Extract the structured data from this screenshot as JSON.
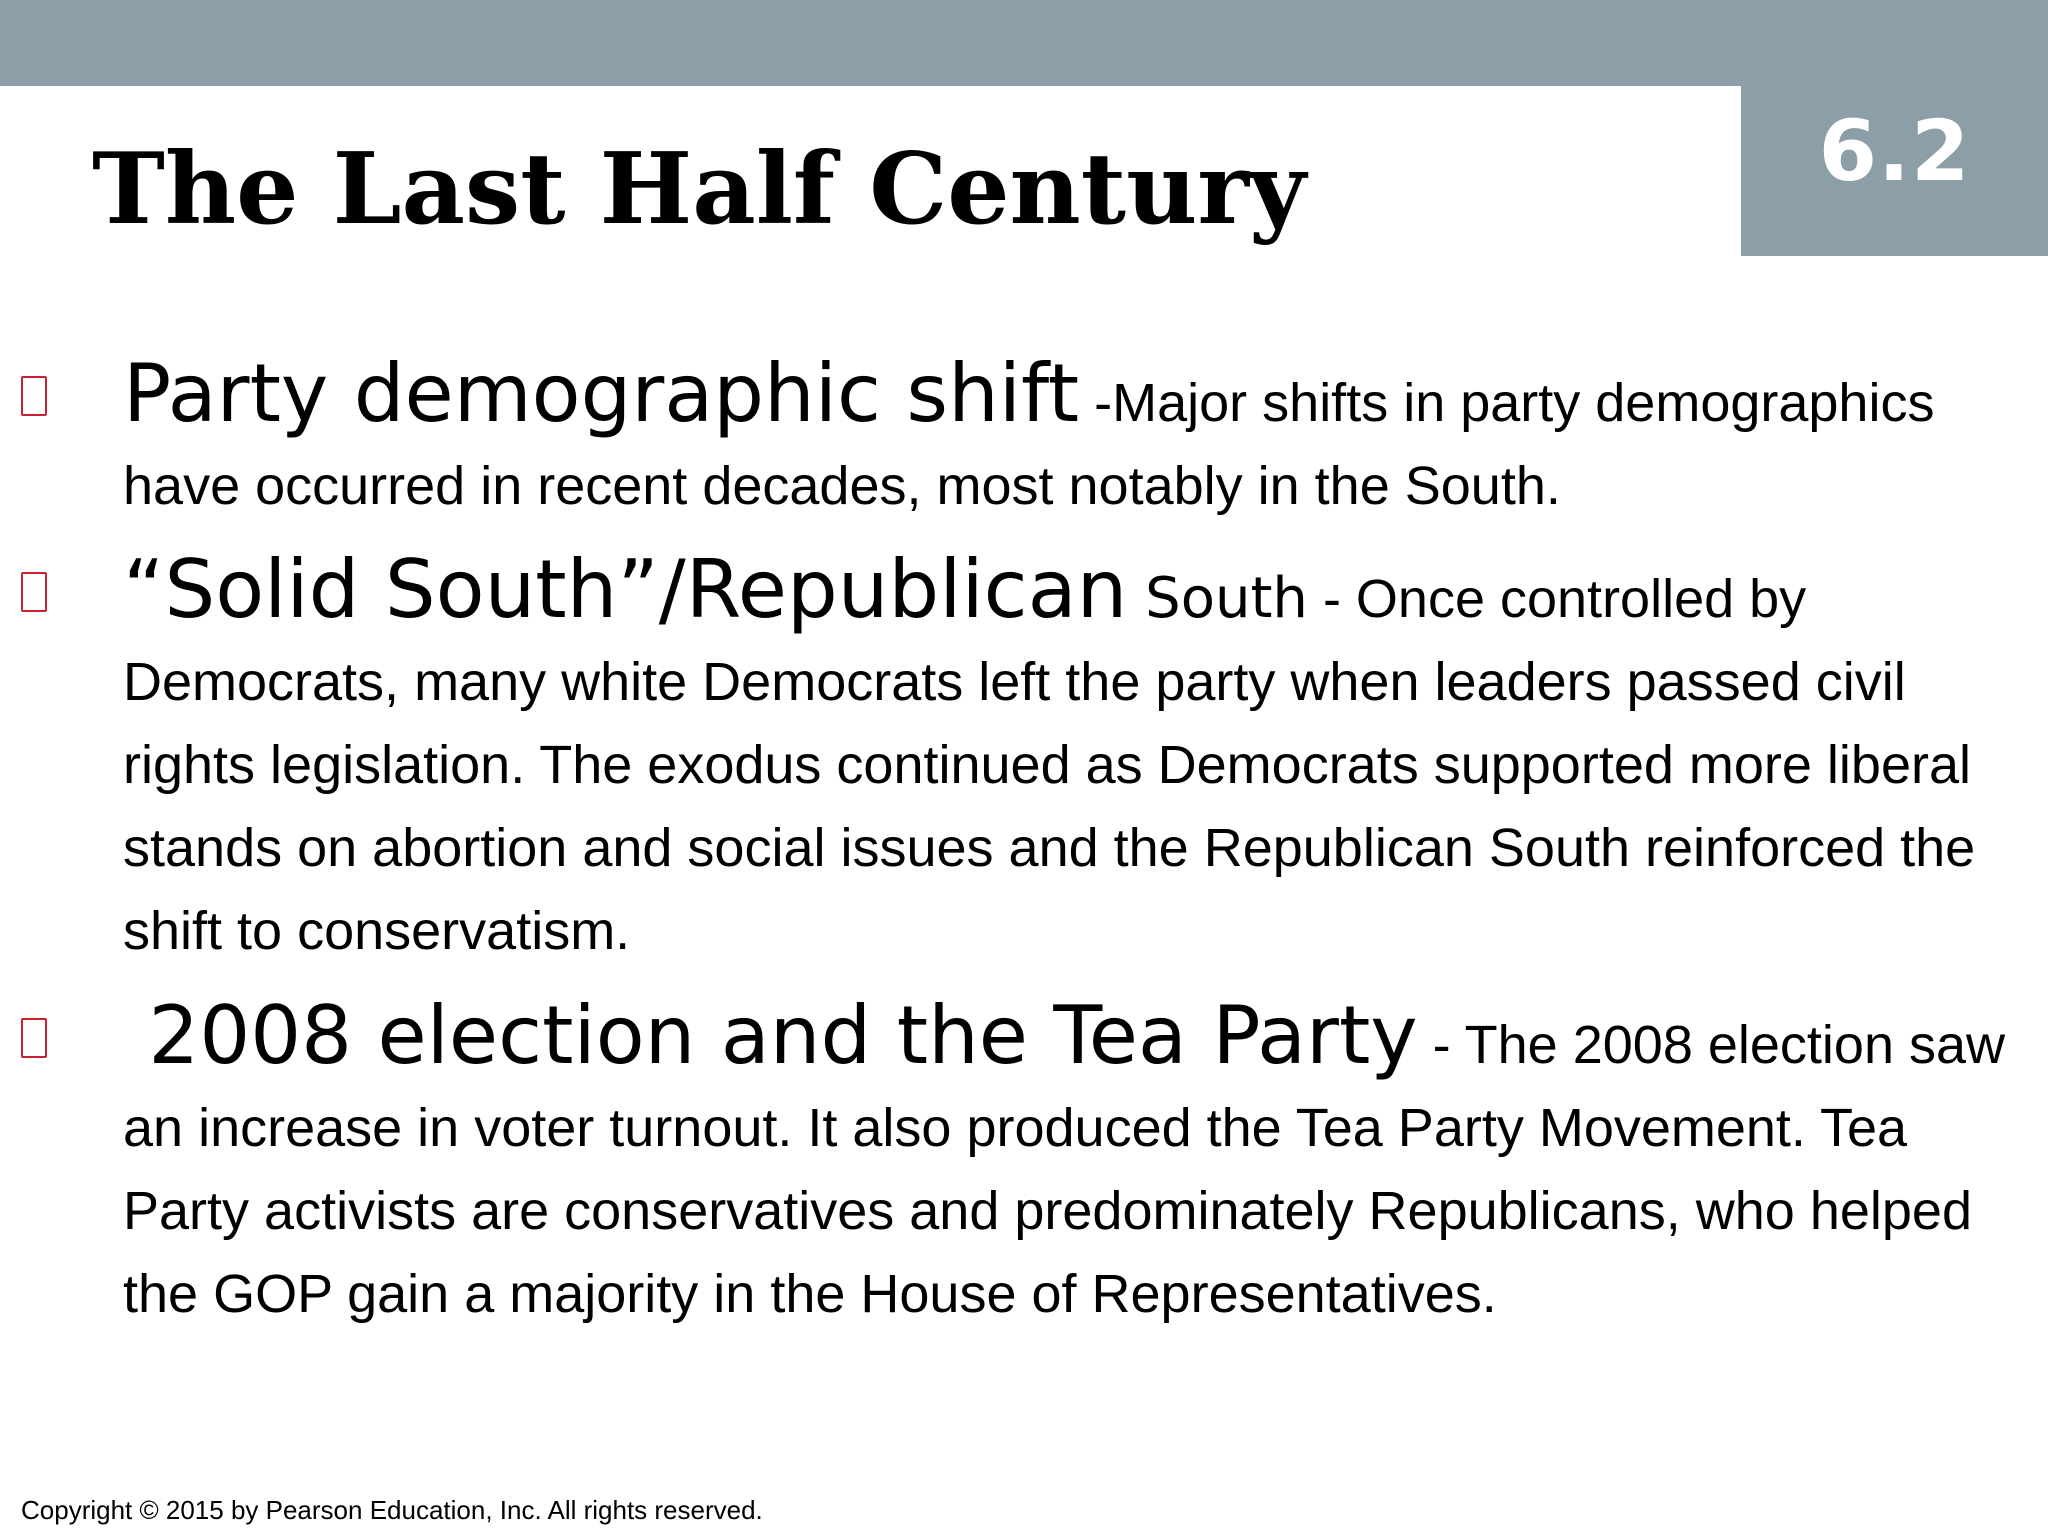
{
  "colors": {
    "band": "#8c9ea8",
    "bullet_marker": "#cc1f2f",
    "text": "#000000",
    "section_number_text": "#ffffff"
  },
  "header": {
    "section_number": "6.2"
  },
  "title": "The Last Half Century",
  "bullets": [
    {
      "icon": "bullet-marker-icon",
      "term": "Party demographic shift",
      "term_suffix": "",
      "body": " -Major shifts in party demographics have occurred in recent decades, most notably in the South."
    },
    {
      "icon": "bullet-marker-icon",
      "term": "“Solid South”/Republican",
      "term_suffix": " South",
      "body": " - Once controlled by Democrats, many white Democrats left the party when leaders passed civil rights legislation. The exodus continued as Democrats supported more liberal stands on abortion and social issues and the Republican South reinforced the shift to conservatism."
    },
    {
      "icon": "bullet-marker-icon",
      "term": " 2008 election and the Tea Party",
      "term_suffix": "",
      "body": " - The 2008 election saw an increase in voter turnout. It also produced the Tea Party Movement. Tea Party activists are conservatives and predominately Republicans, who helped the GOP gain a majority in the House of Representatives."
    }
  ],
  "footer": {
    "copyright": "Copyright © 2015 by Pearson Education, Inc. All rights reserved."
  }
}
